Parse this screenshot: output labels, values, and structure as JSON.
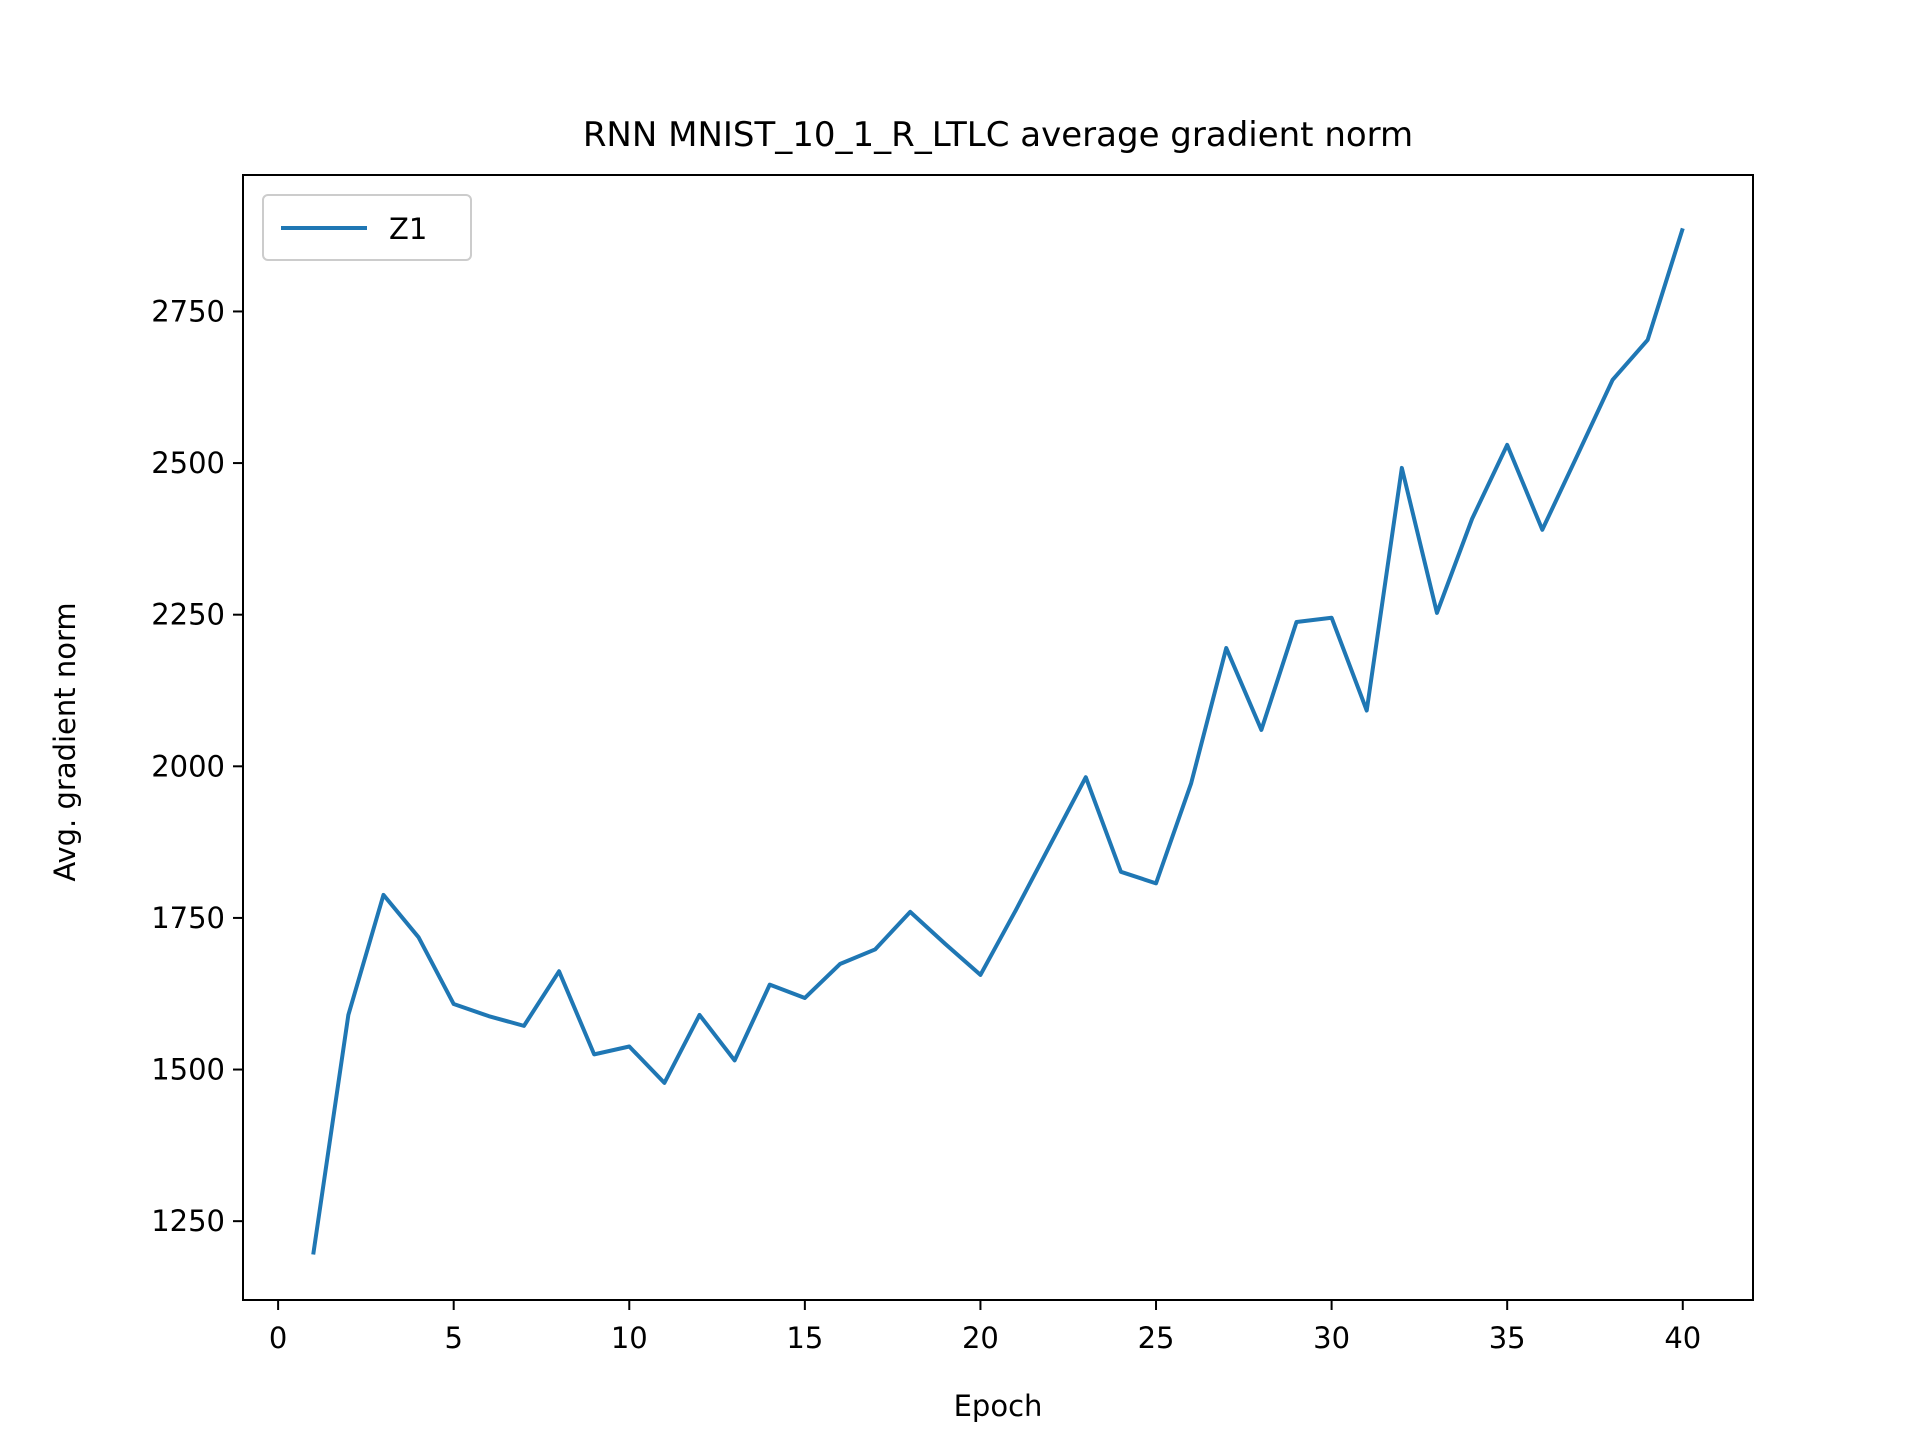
{
  "chart_data": {
    "type": "line",
    "title": "RNN MNIST_10_1_R_LTLC average gradient norm",
    "xlabel": "Epoch",
    "ylabel": "Avg. gradient norm",
    "xlim": [
      -1.0,
      42.0
    ],
    "ylim": [
      1120,
      2975
    ],
    "xticks": [
      0,
      5,
      10,
      15,
      20,
      25,
      30,
      35,
      40
    ],
    "yticks": [
      1250,
      1500,
      1750,
      2000,
      2250,
      2500,
      2750
    ],
    "grid": false,
    "legend_position": "top-left",
    "series": [
      {
        "name": "Z1",
        "color": "#1f77b4",
        "x": [
          1,
          2,
          3,
          4,
          5,
          6,
          7,
          8,
          9,
          10,
          11,
          12,
          13,
          14,
          15,
          16,
          17,
          18,
          19,
          20,
          21,
          22,
          23,
          24,
          25,
          26,
          27,
          28,
          29,
          30,
          31,
          32,
          33,
          34,
          35,
          36,
          37,
          38,
          39,
          40
        ],
        "y": [
          1195,
          1590,
          1788,
          1718,
          1608,
          1588,
          1572,
          1662,
          1525,
          1538,
          1478,
          1590,
          1515,
          1640,
          1618,
          1674,
          1698,
          1760,
          1707,
          1656,
          1762,
          1872,
          1982,
          1826,
          1807,
          1972,
          2195,
          2060,
          2238,
          2245,
          2092,
          2492,
          2253,
          2408,
          2530,
          2390,
          2513,
          2637,
          2703,
          2887
        ]
      }
    ]
  }
}
